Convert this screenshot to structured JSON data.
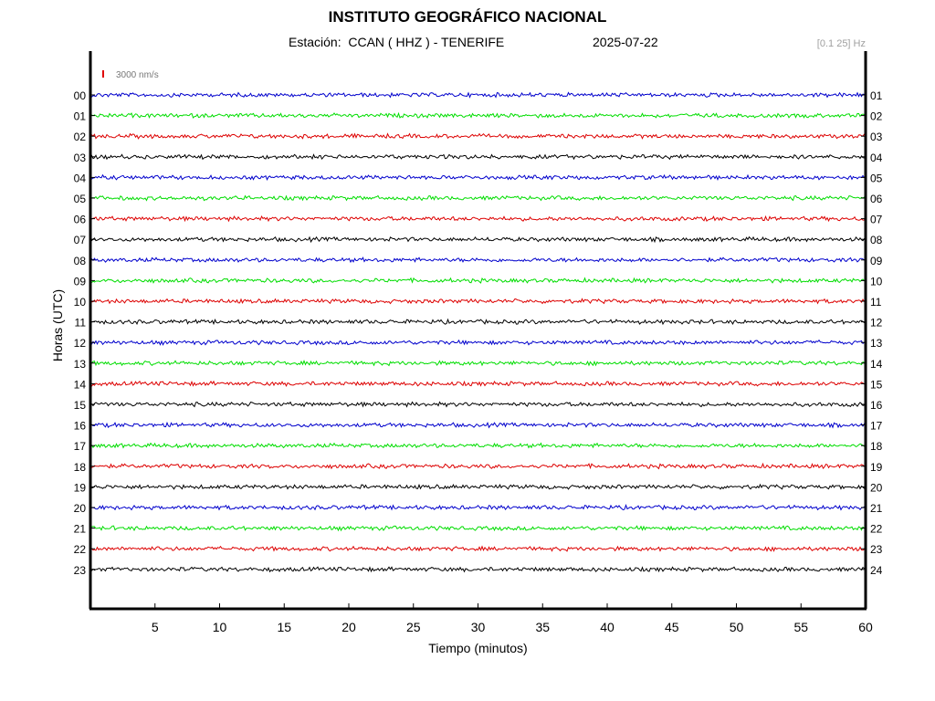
{
  "header": {
    "title": "INSTITUTO GEOGRÁFICO NACIONAL",
    "station_label": "Estación:",
    "station": "CCAN ( HHZ ) - TENERIFE",
    "date": "2025-07-22",
    "band": "[0.1 25] Hz"
  },
  "chart_data": {
    "type": "line",
    "title": "INSTITUTO GEOGRÁFICO NACIONAL",
    "xlabel": "Tiempo (minutos)",
    "ylabel": "Horas (UTC)",
    "xlim": [
      0,
      60
    ],
    "x_ticks": [
      5,
      10,
      15,
      20,
      25,
      30,
      35,
      40,
      45,
      50,
      55,
      60
    ],
    "left_tick_labels": [
      "00",
      "01",
      "02",
      "03",
      "04",
      "05",
      "06",
      "07",
      "08",
      "09",
      "10",
      "11",
      "12",
      "13",
      "14",
      "15",
      "16",
      "17",
      "18",
      "19",
      "20",
      "21",
      "22",
      "23"
    ],
    "right_tick_labels": [
      "01",
      "02",
      "03",
      "04",
      "05",
      "06",
      "07",
      "08",
      "09",
      "10",
      "11",
      "12",
      "13",
      "14",
      "15",
      "16",
      "17",
      "18",
      "19",
      "20",
      "21",
      "22",
      "23",
      "24"
    ],
    "scale_bar": {
      "label": "3000 nm/s",
      "color": "#e00000"
    },
    "trace_colors": [
      "#0000cc",
      "#00dd00",
      "#dd0000",
      "#000000"
    ],
    "grid": false,
    "series_note_hours": 24
  }
}
